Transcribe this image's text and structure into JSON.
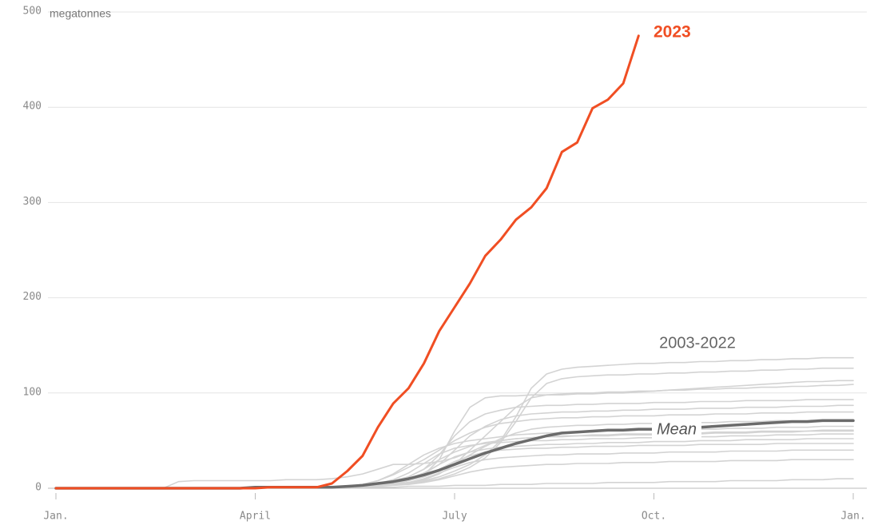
{
  "chart_data": {
    "type": "line",
    "y_unit": "megatonnes",
    "categories": [
      "Jan.",
      null,
      null,
      null,
      null,
      null,
      null,
      null,
      null,
      null,
      null,
      null,
      null,
      "April",
      null,
      null,
      null,
      null,
      null,
      null,
      null,
      null,
      null,
      null,
      null,
      null,
      "July",
      null,
      null,
      null,
      null,
      null,
      null,
      null,
      null,
      null,
      null,
      null,
      null,
      "Oct.",
      null,
      null,
      null,
      null,
      null,
      null,
      null,
      null,
      null,
      null,
      null,
      null,
      "Jan."
    ],
    "ylim": [
      0,
      500
    ],
    "yticks": [
      0,
      100,
      200,
      300,
      400,
      500
    ],
    "grid": true,
    "range_lines": {
      "label": "2003-2022",
      "color": "#d3d3d3",
      "values": [
        [
          0,
          0,
          0,
          0,
          0,
          0,
          0,
          0,
          0,
          0,
          0,
          0,
          0,
          1,
          1,
          1,
          1,
          1,
          1,
          1,
          2,
          3,
          4,
          6,
          8,
          12,
          18,
          25,
          35,
          50,
          75,
          105,
          120,
          125,
          127,
          128,
          129,
          130,
          131,
          131,
          132,
          132,
          133,
          133,
          134,
          134,
          135,
          135,
          136,
          136,
          137,
          137,
          137
        ],
        [
          0,
          0,
          0,
          0,
          0,
          0,
          0,
          0,
          0,
          0,
          0,
          0,
          0,
          1,
          1,
          1,
          1,
          1,
          1,
          1,
          2,
          3,
          4,
          5,
          7,
          10,
          15,
          22,
          32,
          48,
          70,
          95,
          110,
          115,
          117,
          118,
          119,
          119,
          120,
          120,
          121,
          121,
          122,
          122,
          123,
          123,
          124,
          124,
          125,
          125,
          126,
          126,
          126
        ],
        [
          0,
          0,
          0,
          0,
          0,
          0,
          0,
          0,
          0,
          0,
          0,
          0,
          0,
          1,
          1,
          1,
          1,
          1,
          1,
          1,
          2,
          3,
          5,
          8,
          14,
          30,
          60,
          85,
          95,
          97,
          97,
          98,
          98,
          98,
          99,
          99,
          100,
          100,
          101,
          102,
          103,
          104,
          105,
          106,
          107,
          108,
          109,
          110,
          111,
          112,
          112,
          113,
          113
        ],
        [
          0,
          0,
          0,
          0,
          0,
          0,
          0,
          0,
          0,
          0,
          0,
          0,
          0,
          1,
          1,
          1,
          1,
          1,
          1,
          1,
          2,
          3,
          4,
          6,
          9,
          15,
          25,
          40,
          55,
          70,
          85,
          95,
          98,
          99,
          100,
          100,
          101,
          101,
          102,
          102,
          103,
          103,
          104,
          104,
          105,
          105,
          106,
          106,
          107,
          107,
          108,
          108,
          109
        ],
        [
          0,
          0,
          0,
          0,
          0,
          0,
          0,
          0,
          0,
          0,
          0,
          0,
          0,
          1,
          1,
          1,
          1,
          1,
          1,
          2,
          3,
          5,
          8,
          12,
          20,
          35,
          55,
          70,
          78,
          82,
          85,
          86,
          87,
          87,
          88,
          88,
          89,
          89,
          89,
          90,
          90,
          90,
          91,
          91,
          91,
          92,
          92,
          92,
          92,
          93,
          93,
          93,
          93
        ],
        [
          0,
          0,
          0,
          0,
          0,
          0,
          0,
          0,
          0,
          0,
          0,
          0,
          0,
          1,
          1,
          1,
          1,
          1,
          1,
          1,
          2,
          4,
          6,
          10,
          16,
          25,
          40,
          55,
          65,
          72,
          76,
          78,
          79,
          80,
          80,
          81,
          81,
          82,
          82,
          83,
          83,
          83,
          84,
          84,
          84,
          85,
          85,
          85,
          86,
          86,
          86,
          87,
          87
        ],
        [
          0,
          0,
          0,
          0,
          0,
          0,
          0,
          0,
          0,
          0,
          0,
          0,
          0,
          1,
          1,
          1,
          1,
          1,
          1,
          2,
          4,
          8,
          14,
          22,
          30,
          40,
          50,
          58,
          64,
          68,
          70,
          72,
          73,
          74,
          74,
          75,
          75,
          76,
          76,
          76,
          77,
          77,
          77,
          78,
          78,
          78,
          79,
          79,
          79,
          80,
          80,
          80,
          80
        ],
        [
          0,
          0,
          0,
          0,
          0,
          0,
          0,
          0,
          0,
          0,
          0,
          0,
          0,
          1,
          1,
          1,
          1,
          1,
          1,
          1,
          2,
          3,
          5,
          8,
          12,
          18,
          26,
          35,
          44,
          52,
          58,
          62,
          64,
          65,
          66,
          66,
          67,
          67,
          68,
          68,
          68,
          69,
          69,
          69,
          70,
          70,
          70,
          71,
          71,
          71,
          72,
          72,
          72
        ],
        [
          0,
          0,
          0,
          0,
          0,
          0,
          0,
          0,
          0,
          0,
          0,
          0,
          0,
          1,
          1,
          1,
          1,
          1,
          1,
          2,
          4,
          8,
          15,
          25,
          35,
          42,
          47,
          50,
          52,
          54,
          56,
          57,
          58,
          58,
          59,
          59,
          60,
          60,
          61,
          61,
          61,
          62,
          62,
          62,
          63,
          63,
          63,
          64,
          64,
          64,
          65,
          65,
          65
        ],
        [
          0,
          0,
          0,
          0,
          0,
          0,
          0,
          0,
          0,
          0,
          0,
          0,
          0,
          1,
          1,
          1,
          1,
          1,
          1,
          1,
          2,
          4,
          7,
          12,
          20,
          30,
          38,
          44,
          48,
          50,
          52,
          53,
          54,
          55,
          55,
          56,
          56,
          57,
          57,
          57,
          58,
          58,
          58,
          59,
          59,
          59,
          60,
          60,
          60,
          60,
          61,
          61,
          61
        ],
        [
          0,
          0,
          0,
          0,
          0,
          0,
          0,
          0,
          0,
          0,
          0,
          0,
          0,
          1,
          1,
          1,
          1,
          1,
          1,
          2,
          3,
          5,
          9,
          16,
          26,
          36,
          42,
          45,
          47,
          48,
          49,
          50,
          50,
          51,
          51,
          52,
          52,
          52,
          53,
          53,
          53,
          54,
          54,
          54,
          55,
          55,
          55,
          56,
          56,
          56,
          57,
          57,
          57
        ],
        [
          0,
          0,
          0,
          0,
          0,
          0,
          0,
          0,
          0,
          0,
          0,
          0,
          0,
          1,
          1,
          1,
          1,
          1,
          1,
          1,
          2,
          3,
          5,
          9,
          15,
          25,
          33,
          38,
          41,
          43,
          44,
          45,
          46,
          46,
          47,
          47,
          48,
          48,
          48,
          49,
          49,
          49,
          50,
          50,
          50,
          51,
          51,
          51,
          51,
          52,
          52,
          52,
          52
        ],
        [
          0,
          0,
          0,
          0,
          0,
          0,
          0,
          0,
          0,
          0,
          0,
          0,
          0,
          1,
          1,
          1,
          1,
          1,
          1,
          1,
          2,
          3,
          5,
          8,
          13,
          20,
          28,
          34,
          38,
          40,
          41,
          42,
          42,
          43,
          43,
          44,
          44,
          44,
          45,
          45,
          45,
          45,
          46,
          46,
          46,
          46,
          46,
          47,
          47,
          47,
          47,
          47,
          47
        ],
        [
          0,
          0,
          0,
          0,
          0,
          0,
          0,
          0,
          0,
          0,
          0,
          0,
          0,
          1,
          1,
          1,
          1,
          1,
          1,
          1,
          2,
          3,
          4,
          6,
          10,
          16,
          22,
          27,
          30,
          32,
          33,
          34,
          35,
          35,
          36,
          36,
          36,
          37,
          37,
          37,
          38,
          38,
          38,
          38,
          39,
          39,
          39,
          39,
          40,
          40,
          40,
          40,
          40
        ],
        [
          0,
          0,
          0,
          0,
          0,
          0,
          0,
          0,
          0,
          0,
          0,
          0,
          0,
          1,
          1,
          1,
          1,
          1,
          1,
          1,
          1,
          2,
          3,
          4,
          6,
          9,
          13,
          17,
          20,
          22,
          23,
          24,
          25,
          25,
          26,
          26,
          26,
          27,
          27,
          27,
          28,
          28,
          28,
          28,
          29,
          29,
          29,
          29,
          30,
          30,
          30,
          30,
          30
        ],
        [
          0,
          0,
          0,
          0,
          0,
          0,
          0,
          0,
          0,
          0,
          0,
          0,
          0,
          1,
          1,
          1,
          1,
          1,
          1,
          1,
          1,
          1,
          1,
          2,
          2,
          2,
          3,
          3,
          3,
          4,
          4,
          4,
          5,
          5,
          5,
          5,
          6,
          6,
          6,
          6,
          7,
          7,
          7,
          7,
          8,
          8,
          8,
          8,
          9,
          9,
          9,
          10,
          10
        ],
        [
          0,
          0,
          0,
          0,
          0,
          0,
          0,
          0,
          7,
          8,
          8,
          8,
          8,
          8,
          8,
          9,
          9,
          9,
          10,
          12,
          15,
          20,
          25,
          25,
          26,
          28,
          32,
          38,
          45,
          50,
          52,
          53,
          54,
          54,
          55,
          55,
          55,
          56,
          56,
          56,
          57,
          57,
          57,
          58,
          58,
          58,
          59,
          59,
          59,
          60,
          60,
          60,
          60
        ]
      ]
    },
    "series": [
      {
        "name": "Mean",
        "color": "#6b6b6b",
        "values": [
          0,
          0,
          0,
          0,
          0,
          0,
          0,
          0,
          0,
          0,
          0,
          0,
          0,
          1,
          1,
          1,
          1,
          1,
          1,
          2,
          3,
          5,
          7,
          10,
          14,
          19,
          25,
          31,
          37,
          42,
          47,
          51,
          55,
          58,
          59,
          60,
          61,
          61,
          62,
          62,
          63,
          63,
          64,
          65,
          66,
          67,
          68,
          69,
          70,
          70,
          71,
          71,
          71
        ]
      },
      {
        "name": "2023",
        "color": "#f04e23",
        "values": [
          0,
          0,
          0,
          0,
          0,
          0,
          0,
          0,
          0,
          0,
          0,
          0,
          0,
          0,
          1,
          1,
          1,
          1,
          5,
          18,
          34,
          64,
          89,
          105,
          131,
          165,
          190,
          215,
          244,
          261,
          282,
          295,
          315,
          353,
          363,
          399,
          408,
          425,
          475,
          null,
          null,
          null,
          null,
          null,
          null,
          null,
          null,
          null,
          null,
          null,
          null,
          null,
          null
        ]
      }
    ]
  }
}
